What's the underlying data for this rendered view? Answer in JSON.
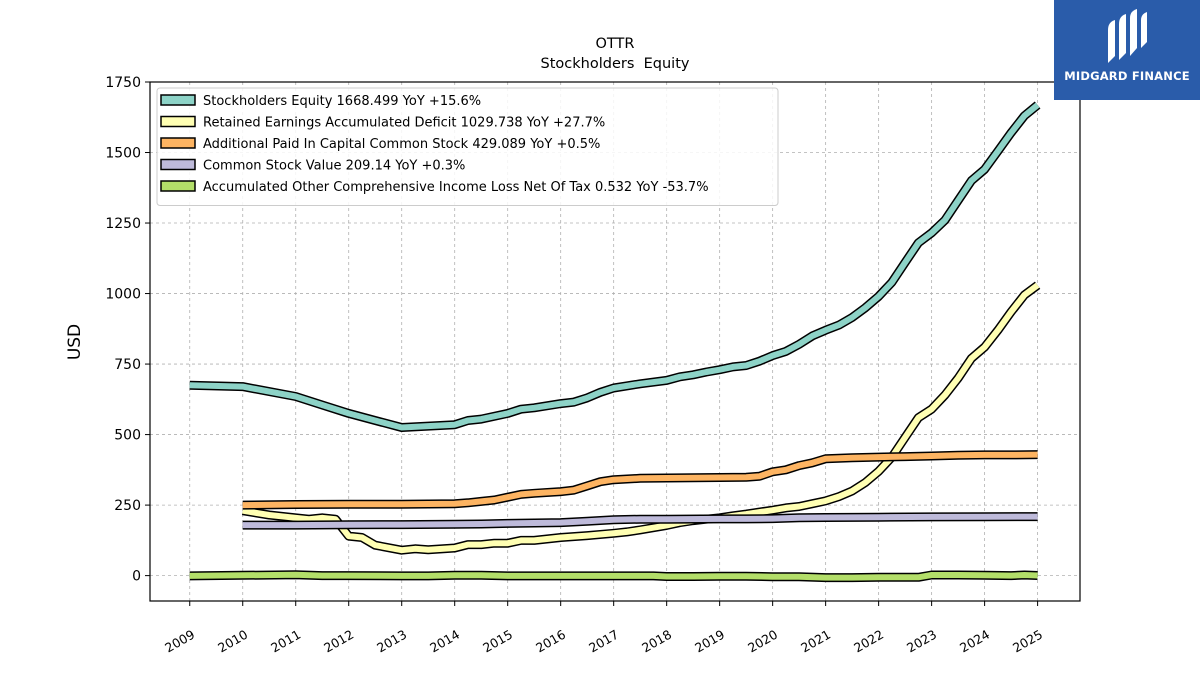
{
  "brand": {
    "name": "MIDGARD FINANCE"
  },
  "chart_data": {
    "type": "line",
    "title": "OTTR",
    "subtitle": "Stockholders  Equity",
    "ylabel": "USD",
    "xlabel": "",
    "ylim": [
      -90,
      1750
    ],
    "xlim": [
      2008.25,
      2025.8
    ],
    "yticks": [
      0,
      250,
      500,
      750,
      1000,
      1250,
      1500,
      1750
    ],
    "xticks": [
      2009,
      2010,
      2011,
      2012,
      2013,
      2014,
      2015,
      2016,
      2017,
      2018,
      2019,
      2020,
      2021,
      2022,
      2023,
      2024,
      2025
    ],
    "grid": true,
    "legend_position": "top-left",
    "series": [
      {
        "name": "Stockholders Equity",
        "legend": "Stockholders Equity  1668.499 YoY +15.6%",
        "color": "#8dd3c7",
        "points": [
          [
            2009.0,
            675
          ],
          [
            2010.0,
            670
          ],
          [
            2011.0,
            635
          ],
          [
            2011.5,
            605
          ],
          [
            2012.0,
            575
          ],
          [
            2012.5,
            550
          ],
          [
            2013.0,
            525
          ],
          [
            2013.5,
            530
          ],
          [
            2014.0,
            535
          ],
          [
            2014.25,
            550
          ],
          [
            2014.5,
            555
          ],
          [
            2015.0,
            575
          ],
          [
            2015.25,
            590
          ],
          [
            2015.5,
            595
          ],
          [
            2016.0,
            610
          ],
          [
            2016.25,
            615
          ],
          [
            2016.5,
            630
          ],
          [
            2016.75,
            650
          ],
          [
            2017.0,
            665
          ],
          [
            2017.5,
            680
          ],
          [
            2018.0,
            692
          ],
          [
            2018.25,
            705
          ],
          [
            2018.5,
            712
          ],
          [
            2018.75,
            722
          ],
          [
            2019.0,
            730
          ],
          [
            2019.25,
            740
          ],
          [
            2019.5,
            745
          ],
          [
            2019.75,
            760
          ],
          [
            2020.0,
            780
          ],
          [
            2020.25,
            795
          ],
          [
            2020.5,
            820
          ],
          [
            2020.75,
            850
          ],
          [
            2021.0,
            870
          ],
          [
            2021.25,
            888
          ],
          [
            2021.5,
            915
          ],
          [
            2021.75,
            950
          ],
          [
            2022.0,
            990
          ],
          [
            2022.25,
            1040
          ],
          [
            2022.5,
            1110
          ],
          [
            2022.75,
            1180
          ],
          [
            2023.0,
            1215
          ],
          [
            2023.25,
            1260
          ],
          [
            2023.5,
            1330
          ],
          [
            2023.75,
            1400
          ],
          [
            2024.0,
            1440
          ],
          [
            2024.25,
            1505
          ],
          [
            2024.5,
            1570
          ],
          [
            2024.75,
            1630
          ],
          [
            2025.0,
            1668.5
          ]
        ]
      },
      {
        "name": "Retained Earnings Accumulated Deficit",
        "legend": "Retained Earnings Accumulated Deficit  1029.738 YoY +27.7%",
        "color": "#ffffb3",
        "points": [
          [
            2010.0,
            230
          ],
          [
            2010.5,
            215
          ],
          [
            2011.0,
            205
          ],
          [
            2011.25,
            200
          ],
          [
            2011.5,
            205
          ],
          [
            2011.75,
            200
          ],
          [
            2012.0,
            140
          ],
          [
            2012.25,
            135
          ],
          [
            2012.5,
            108
          ],
          [
            2013.0,
            90
          ],
          [
            2013.25,
            95
          ],
          [
            2013.5,
            92
          ],
          [
            2014.0,
            98
          ],
          [
            2014.25,
            110
          ],
          [
            2014.5,
            110
          ],
          [
            2014.75,
            115
          ],
          [
            2015.0,
            115
          ],
          [
            2015.25,
            125
          ],
          [
            2015.5,
            125
          ],
          [
            2016.0,
            135
          ],
          [
            2016.5,
            142
          ],
          [
            2017.0,
            150
          ],
          [
            2017.25,
            155
          ],
          [
            2017.5,
            162
          ],
          [
            2017.75,
            170
          ],
          [
            2018.0,
            178
          ],
          [
            2018.25,
            188
          ],
          [
            2018.5,
            195
          ],
          [
            2018.75,
            200
          ],
          [
            2019.0,
            205
          ],
          [
            2019.25,
            212
          ],
          [
            2019.5,
            218
          ],
          [
            2019.75,
            225
          ],
          [
            2020.0,
            232
          ],
          [
            2020.25,
            240
          ],
          [
            2020.5,
            245
          ],
          [
            2020.75,
            255
          ],
          [
            2021.0,
            265
          ],
          [
            2021.25,
            280
          ],
          [
            2021.5,
            300
          ],
          [
            2021.75,
            330
          ],
          [
            2022.0,
            370
          ],
          [
            2022.25,
            420
          ],
          [
            2022.5,
            490
          ],
          [
            2022.75,
            560
          ],
          [
            2023.0,
            590
          ],
          [
            2023.25,
            640
          ],
          [
            2023.5,
            700
          ],
          [
            2023.75,
            770
          ],
          [
            2024.0,
            810
          ],
          [
            2024.25,
            870
          ],
          [
            2024.5,
            935
          ],
          [
            2024.75,
            995
          ],
          [
            2025.0,
            1029.7
          ]
        ]
      },
      {
        "name": "Additional Paid In Capital Common Stock",
        "legend": "Additional Paid In Capital Common Stock  429.089 YoY +0.5%",
        "color": "#fdb462",
        "points": [
          [
            2010.0,
            250
          ],
          [
            2011.0,
            252
          ],
          [
            2012.0,
            253
          ],
          [
            2013.0,
            253
          ],
          [
            2014.0,
            255
          ],
          [
            2014.25,
            258
          ],
          [
            2014.5,
            263
          ],
          [
            2014.75,
            268
          ],
          [
            2015.0,
            278
          ],
          [
            2015.25,
            288
          ],
          [
            2015.5,
            292
          ],
          [
            2016.0,
            298
          ],
          [
            2016.25,
            303
          ],
          [
            2016.5,
            318
          ],
          [
            2016.75,
            333
          ],
          [
            2017.0,
            340
          ],
          [
            2017.5,
            345
          ],
          [
            2018.0,
            346
          ],
          [
            2018.5,
            347
          ],
          [
            2019.0,
            348
          ],
          [
            2019.5,
            349
          ],
          [
            2019.75,
            352
          ],
          [
            2020.0,
            368
          ],
          [
            2020.25,
            375
          ],
          [
            2020.5,
            390
          ],
          [
            2020.75,
            400
          ],
          [
            2021.0,
            414
          ],
          [
            2021.5,
            418
          ],
          [
            2022.0,
            420
          ],
          [
            2022.5,
            422
          ],
          [
            2023.0,
            424
          ],
          [
            2023.5,
            427
          ],
          [
            2024.0,
            428
          ],
          [
            2024.5,
            428
          ],
          [
            2025.0,
            429.1
          ]
        ]
      },
      {
        "name": "Common Stock Value",
        "legend": "Common Stock Value  209.14 YoY +0.3%",
        "color": "#bebada",
        "points": [
          [
            2010.0,
            179
          ],
          [
            2011.0,
            179
          ],
          [
            2012.0,
            180
          ],
          [
            2013.0,
            181
          ],
          [
            2014.0,
            182
          ],
          [
            2014.5,
            183
          ],
          [
            2015.0,
            185
          ],
          [
            2016.0,
            188
          ],
          [
            2016.5,
            193
          ],
          [
            2017.0,
            198
          ],
          [
            2017.5,
            200
          ],
          [
            2018.0,
            200
          ],
          [
            2019.0,
            201
          ],
          [
            2019.5,
            201
          ],
          [
            2020.0,
            202
          ],
          [
            2020.5,
            205
          ],
          [
            2021.0,
            206
          ],
          [
            2022.0,
            207
          ],
          [
            2023.0,
            208
          ],
          [
            2024.0,
            208.5
          ],
          [
            2025.0,
            209.1
          ]
        ]
      },
      {
        "name": "Accumulated Other Comprehensive Income Loss Net Of Tax",
        "legend": "Accumulated Other Comprehensive Income Loss Net Of Tax  0.532 YoY -53.7%",
        "color": "#b3de69",
        "points": [
          [
            2009.0,
            -1
          ],
          [
            2010.0,
            1
          ],
          [
            2011.0,
            3
          ],
          [
            2011.5,
            0
          ],
          [
            2012.0,
            0
          ],
          [
            2013.0,
            -1
          ],
          [
            2013.5,
            -1
          ],
          [
            2014.0,
            1
          ],
          [
            2014.5,
            1
          ],
          [
            2015.0,
            -1
          ],
          [
            2016.0,
            -1
          ],
          [
            2017.0,
            -1
          ],
          [
            2017.75,
            -1
          ],
          [
            2018.0,
            -3
          ],
          [
            2018.5,
            -3
          ],
          [
            2019.0,
            -2
          ],
          [
            2019.5,
            -2
          ],
          [
            2020.0,
            -4
          ],
          [
            2020.5,
            -4
          ],
          [
            2021.0,
            -7
          ],
          [
            2021.5,
            -7
          ],
          [
            2022.0,
            -6
          ],
          [
            2022.5,
            -6
          ],
          [
            2022.75,
            -6
          ],
          [
            2023.0,
            2
          ],
          [
            2023.5,
            2
          ],
          [
            2024.0,
            1
          ],
          [
            2024.5,
            0
          ],
          [
            2024.75,
            2
          ],
          [
            2025.0,
            0.5
          ]
        ]
      }
    ]
  }
}
